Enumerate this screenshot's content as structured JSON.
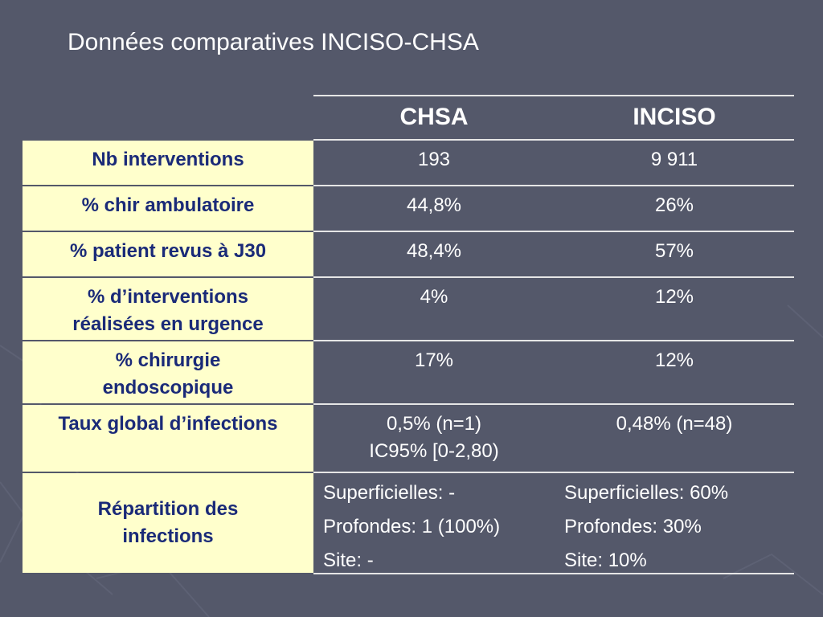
{
  "title": "Données comparatives INCISO-CHSA",
  "columns": [
    "CHSA",
    "INCISO"
  ],
  "rows": [
    {
      "label": [
        "Nb interventions"
      ],
      "chsa": [
        "193"
      ],
      "inciso": [
        "9 911"
      ]
    },
    {
      "label": [
        "% chir ambulatoire"
      ],
      "chsa": [
        "44,8%"
      ],
      "inciso": [
        "26%"
      ]
    },
    {
      "label": [
        "% patient revus à J30"
      ],
      "chsa": [
        "48,4%"
      ],
      "inciso": [
        "57%"
      ]
    },
    {
      "label": [
        "% d’interventions",
        "réalisées en urgence"
      ],
      "chsa": [
        "4%"
      ],
      "inciso": [
        "12%"
      ]
    },
    {
      "label": [
        "% chirurgie",
        "endoscopique"
      ],
      "chsa": [
        "17%"
      ],
      "inciso": [
        "12%"
      ]
    },
    {
      "label": [
        "Taux global d’infections"
      ],
      "chsa": [
        "0,5% (n=1)",
        "IC95% [0-2,80)"
      ],
      "inciso": [
        "0,48% (n=48)"
      ]
    },
    {
      "label": [
        "Répartition des",
        "infections"
      ],
      "chsa": [
        "Superficielles: -",
        "Profondes: 1 (100%)",
        "Site: -"
      ],
      "inciso": [
        "Superficielles:  60%",
        "Profondes: 30%",
        "Site: 10%"
      ]
    }
  ],
  "colors": {
    "background": "#54586a",
    "label_fill": "#ffffcc",
    "label_text": "#1a2a78",
    "text": "#ffffff",
    "rule": "#e6e6e6"
  }
}
